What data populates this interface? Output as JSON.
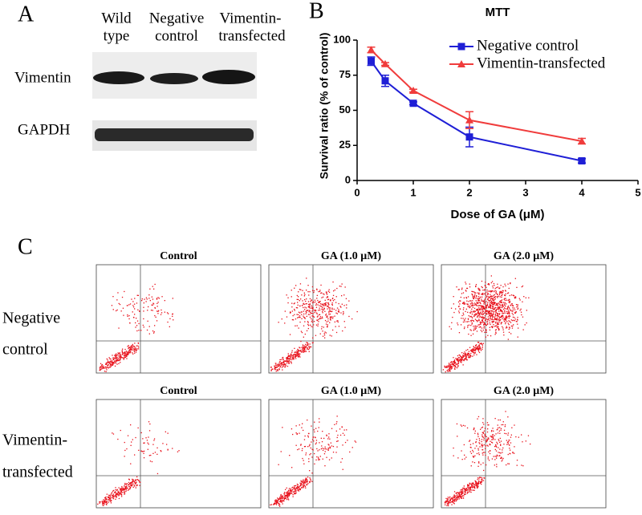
{
  "panel_a": {
    "label": "A",
    "columns": [
      [
        "Wild",
        "type"
      ],
      [
        "Negative",
        "control"
      ],
      [
        "Vimentin-",
        "transfected"
      ]
    ],
    "rows": [
      "Vimentin",
      "GAPDH"
    ]
  },
  "chart_data": {
    "type": "line",
    "panel_label": "B",
    "title": "MTT",
    "xlabel": "Dose of GA (μM)",
    "ylabel": "Survival ratio (% of control)",
    "x": [
      0.25,
      0.5,
      1,
      2,
      4
    ],
    "series": [
      {
        "name": "Negative control",
        "color": "#1f1fd6",
        "marker": "square",
        "values": [
          85,
          71,
          55,
          31,
          14
        ],
        "errors": [
          3,
          4,
          1,
          7,
          1.5
        ]
      },
      {
        "name": "Vimentin-transfected",
        "color": "#f03c3c",
        "marker": "triangle",
        "values": [
          93,
          83,
          64,
          43,
          28
        ],
        "errors": [
          2,
          1,
          1,
          6,
          2
        ]
      }
    ],
    "xlim": [
      0,
      5
    ],
    "xticks": [
      0,
      1,
      2,
      3,
      4,
      5
    ],
    "ylim": [
      0,
      100
    ],
    "yticks": [
      0,
      25,
      50,
      75,
      100
    ],
    "legend": "upper right"
  },
  "panel_c": {
    "label": "C",
    "rows": [
      [
        "Negative",
        "control"
      ],
      [
        "Vimentin-",
        "transfected"
      ]
    ],
    "columns": [
      "Control",
      "GA (1.0 μM)",
      "GA (2.0 μM)"
    ]
  }
}
